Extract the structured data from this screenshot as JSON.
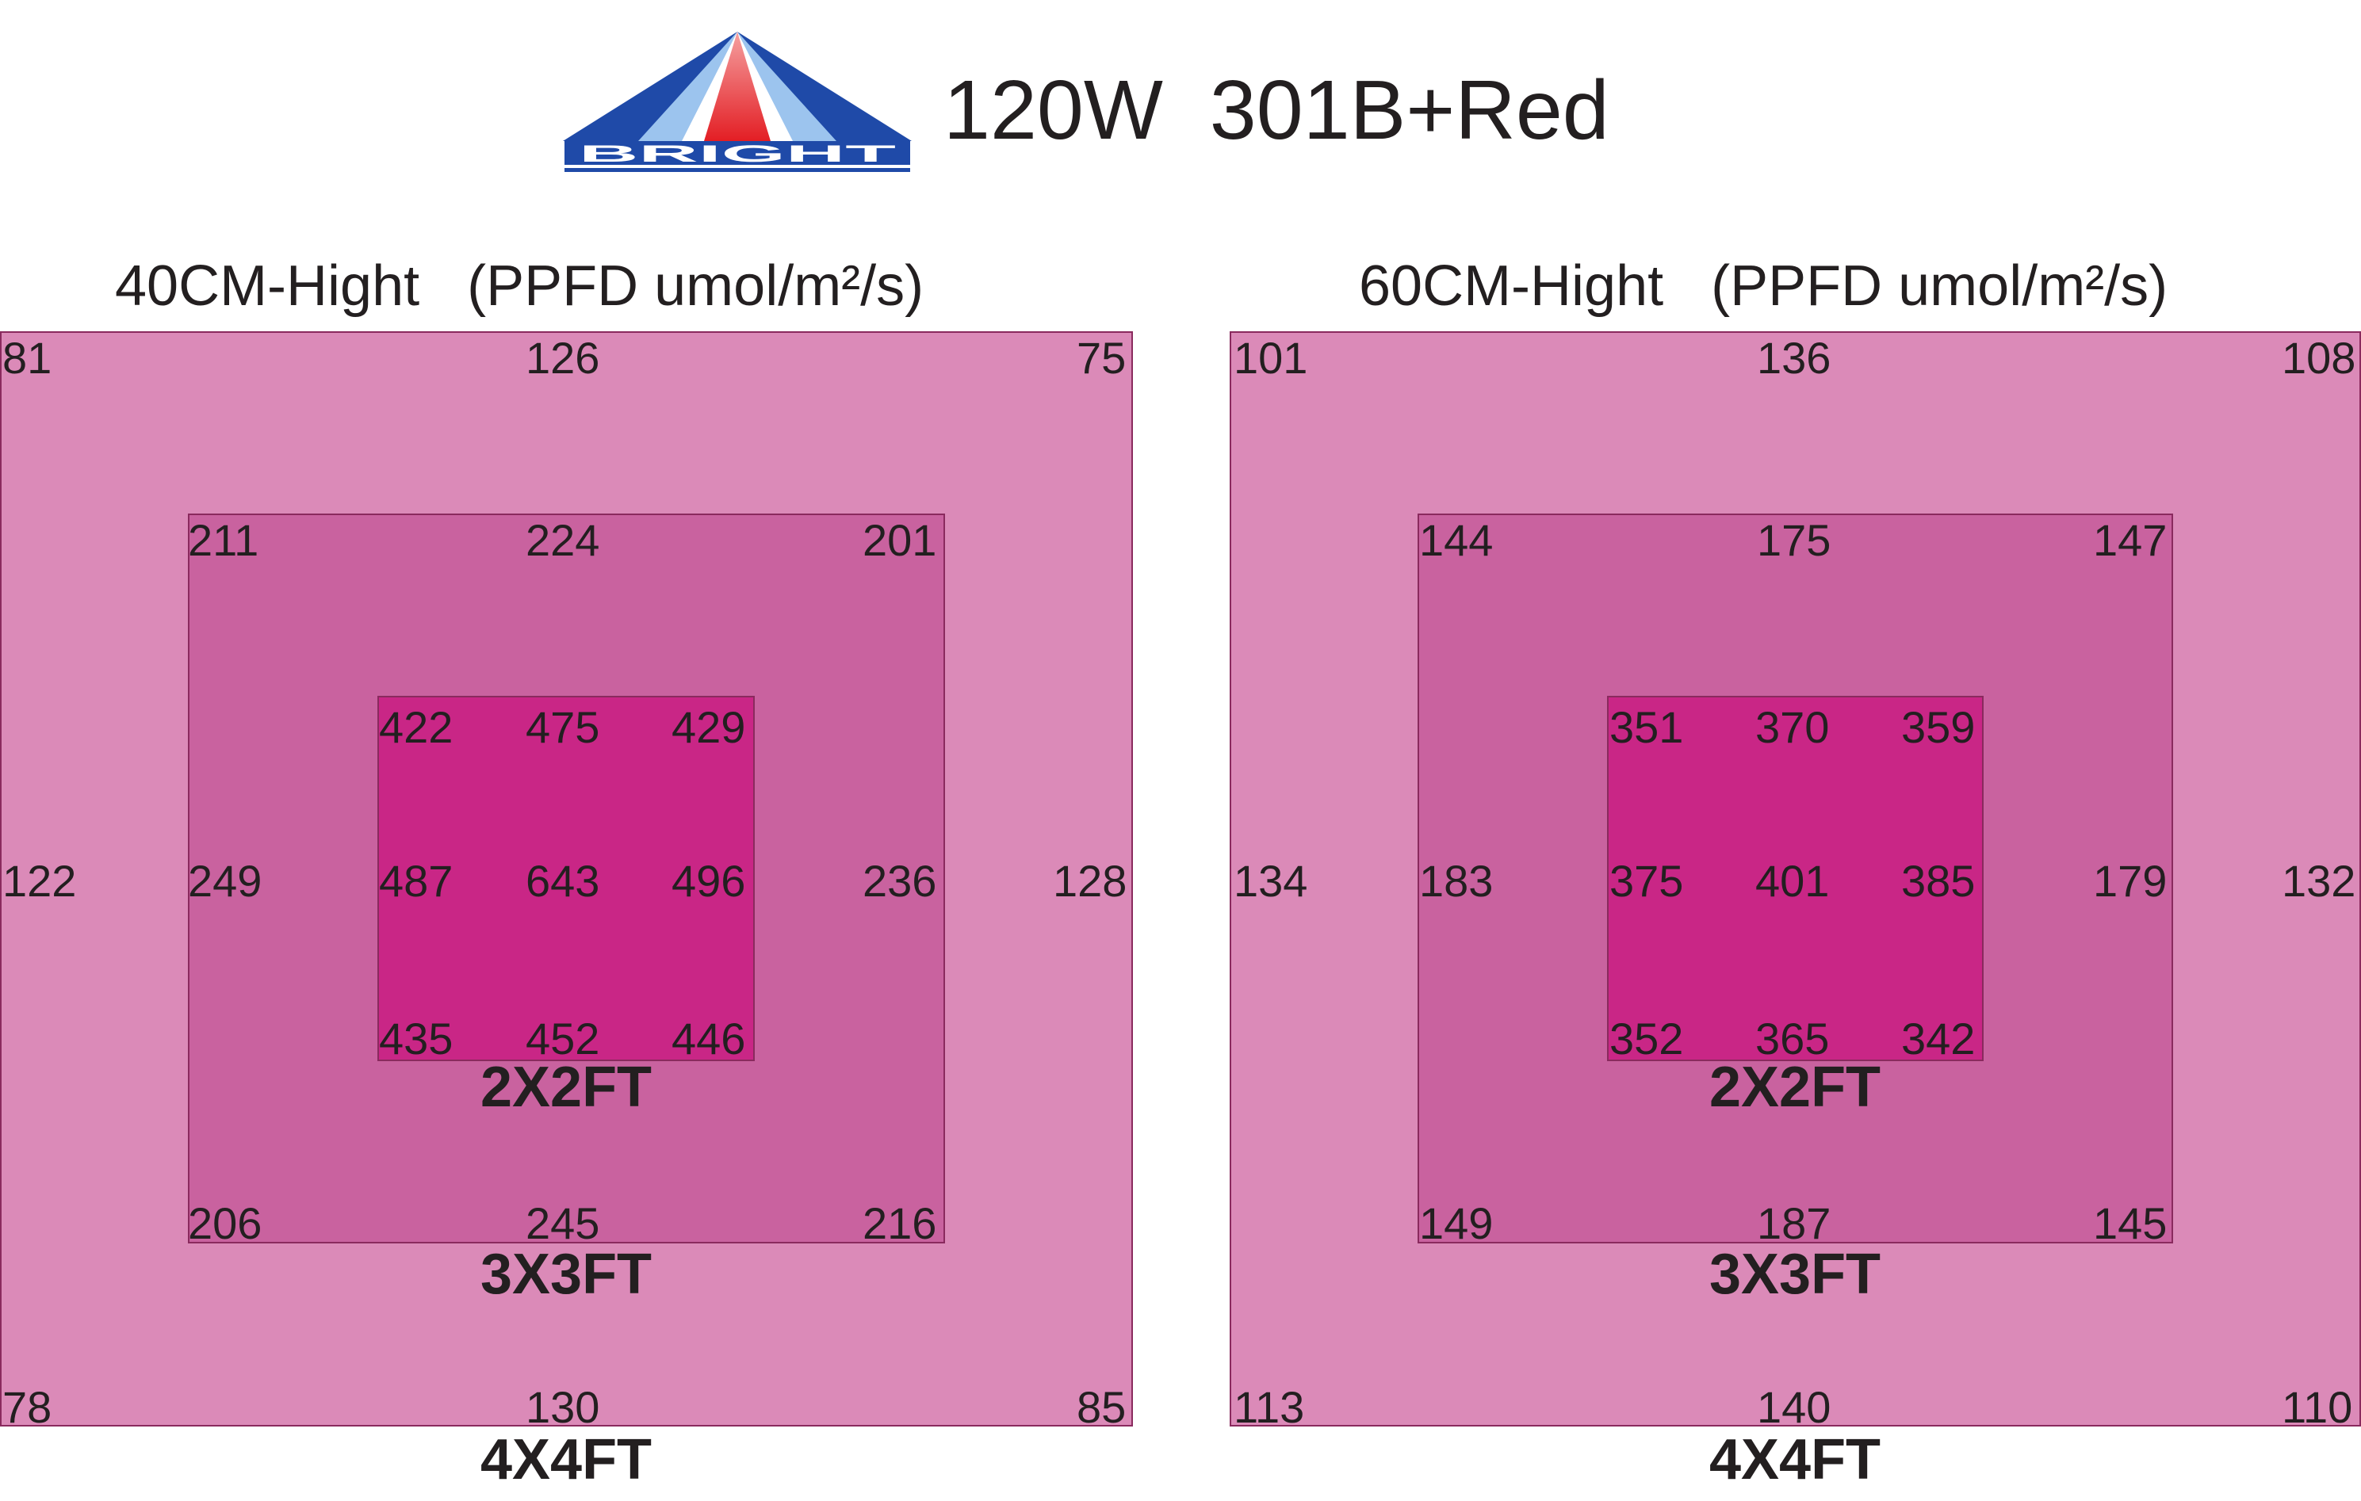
{
  "logo": {
    "text": "BRIGHT",
    "colors": {
      "blue": "#1f4aa8",
      "red": "#e31e24",
      "light_blue": "#7fb2e5"
    }
  },
  "title": "120W  301B+Red",
  "colors": {
    "outer": "#db8ab8",
    "middle": "#c9629f",
    "inner": "#c92686",
    "text": "#231f20"
  },
  "panels": [
    {
      "heading": "40CM-Hight   (PPFD umol/m²/s)",
      "outer": {
        "tl": "81",
        "tc": "126",
        "tr": "75",
        "ml": "122",
        "mr": "128",
        "bl": "78",
        "bc": "130",
        "br": "85"
      },
      "middle": {
        "tl": "211",
        "tc": "224",
        "tr": "201",
        "ml": "249",
        "mr": "236",
        "bl": "206",
        "bc": "245",
        "br": "216"
      },
      "inner": {
        "tl": "422",
        "tc": "475",
        "tr": "429",
        "ml": "487",
        "c": "643",
        "mr": "496",
        "bl": "435",
        "bc": "452",
        "br": "446"
      },
      "labels": {
        "inner": "2X2FT",
        "middle": "3X3FT",
        "outer": "4X4FT"
      }
    },
    {
      "heading": "60CM-Hight   (PPFD umol/m²/s)",
      "outer": {
        "tl": "101",
        "tc": "136",
        "tr": "108",
        "ml": "134",
        "mr": "132",
        "bl": "113",
        "bc": "140",
        "br": "110"
      },
      "middle": {
        "tl": "144",
        "tc": "175",
        "tr": "147",
        "ml": "183",
        "mr": "179",
        "bl": "149",
        "bc": "187",
        "br": "145"
      },
      "inner": {
        "tl": "351",
        "tc": "370",
        "tr": "359",
        "ml": "375",
        "c": "401",
        "mr": "385",
        "bl": "352",
        "bc": "365",
        "br": "342"
      },
      "labels": {
        "inner": "2X2FT",
        "middle": "3X3FT",
        "outer": "4X4FT"
      }
    }
  ]
}
